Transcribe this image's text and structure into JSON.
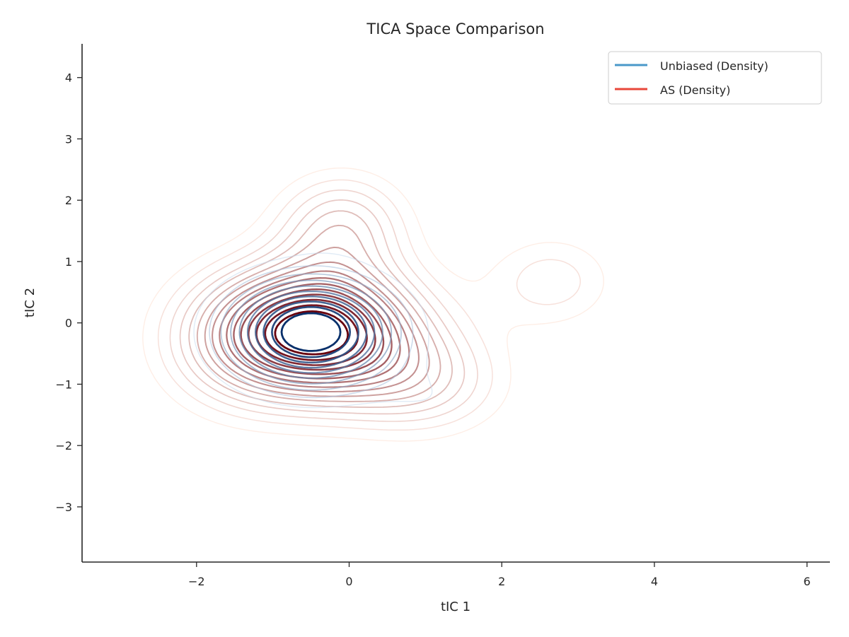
{
  "chart_data": {
    "type": "contour",
    "title": "TICA Space Comparison",
    "xlabel": "tIC 1",
    "ylabel": "tIC 2",
    "xlim": [
      -3.5,
      6.3
    ],
    "ylim": [
      -3.9,
      4.55
    ],
    "xticks": [
      -2,
      0,
      2,
      4,
      6
    ],
    "yticks": [
      -3,
      -2,
      -1,
      0,
      1,
      2,
      3,
      4
    ],
    "xtick_labels": [
      "−2",
      "0",
      "2",
      "4",
      "6"
    ],
    "ytick_labels": [
      "−3",
      "−2",
      "−1",
      "0",
      "1",
      "2",
      "3",
      "4"
    ],
    "grid": false,
    "legend_position": "top-right",
    "series": [
      {
        "name": "Unbiased (Density)",
        "kind": "density-contours",
        "legend_color": "#4a98c9",
        "color_light": "#c6dbef",
        "color_dark": "#08306b",
        "levels": 10,
        "components": [
          {
            "cx": -0.5,
            "cy": -0.15,
            "sx": 0.75,
            "sy": 0.6,
            "w": 1.0
          },
          {
            "cx": -0.1,
            "cy": 1.85,
            "sx": 0.5,
            "sy": 0.45,
            "w": 0.1
          },
          {
            "cx": 1.1,
            "cy": -1.25,
            "sx": 0.55,
            "sy": 0.4,
            "w": 0.1
          },
          {
            "cx": 2.85,
            "cy": 0.7,
            "sx": 0.45,
            "sy": 0.4,
            "w": 0.045
          }
        ]
      },
      {
        "name": "AS (Density)",
        "kind": "density-contours",
        "legend_color": "#e8473a",
        "color_light": "#fee0d2",
        "color_dark": "#67000d",
        "levels": 16,
        "components": [
          {
            "cx": -0.45,
            "cy": -0.15,
            "sx": 0.95,
            "sy": 0.75,
            "w": 1.0
          },
          {
            "cx": -0.1,
            "cy": 1.6,
            "sx": 0.6,
            "sy": 0.6,
            "w": 0.32
          },
          {
            "cx": 1.0,
            "cy": -1.0,
            "sx": 0.75,
            "sy": 0.6,
            "w": 0.25
          },
          {
            "cx": 2.65,
            "cy": 0.68,
            "sx": 0.6,
            "sy": 0.55,
            "w": 0.19
          },
          {
            "cx": -1.6,
            "cy": -0.4,
            "sx": 0.7,
            "sy": 0.8,
            "w": 0.14
          }
        ]
      }
    ]
  }
}
